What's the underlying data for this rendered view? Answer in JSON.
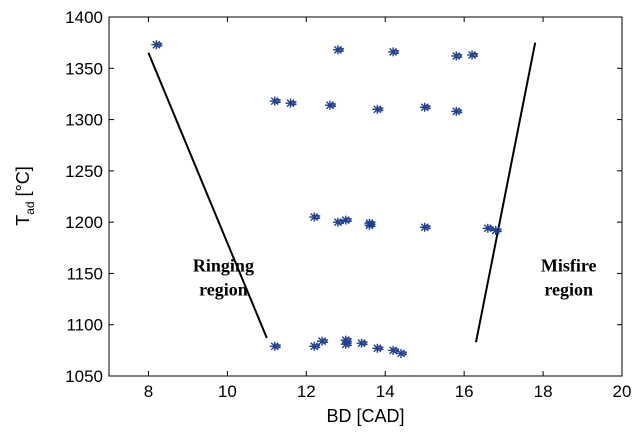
{
  "chart_data": {
    "type": "scatter",
    "title": "",
    "xlabel": "BD [CAD]",
    "ylabel_main": "T",
    "ylabel_sub": "ad",
    "ylabel_unit": " [°C]",
    "xlim": [
      7,
      20
    ],
    "ylim": [
      1050,
      1400
    ],
    "xticks": [
      8,
      10,
      12,
      14,
      16,
      18,
      20
    ],
    "yticks": [
      1050,
      1100,
      1150,
      1200,
      1250,
      1300,
      1350,
      1400
    ],
    "grid": false,
    "marker_color": "#1f3f8f",
    "line_color": "#000000",
    "points": [
      {
        "x": 8.2,
        "y": 1373
      },
      {
        "x": 12.8,
        "y": 1368
      },
      {
        "x": 14.2,
        "y": 1366
      },
      {
        "x": 15.8,
        "y": 1362
      },
      {
        "x": 16.2,
        "y": 1363
      },
      {
        "x": 11.2,
        "y": 1318
      },
      {
        "x": 11.6,
        "y": 1316
      },
      {
        "x": 12.6,
        "y": 1314
      },
      {
        "x": 13.8,
        "y": 1310
      },
      {
        "x": 15.0,
        "y": 1312
      },
      {
        "x": 15.8,
        "y": 1308
      },
      {
        "x": 12.2,
        "y": 1205
      },
      {
        "x": 12.8,
        "y": 1200
      },
      {
        "x": 13.0,
        "y": 1202
      },
      {
        "x": 13.6,
        "y": 1199
      },
      {
        "x": 13.6,
        "y": 1197
      },
      {
        "x": 15.0,
        "y": 1195
      },
      {
        "x": 16.6,
        "y": 1194
      },
      {
        "x": 16.8,
        "y": 1192
      },
      {
        "x": 11.2,
        "y": 1079
      },
      {
        "x": 12.2,
        "y": 1079
      },
      {
        "x": 12.4,
        "y": 1084
      },
      {
        "x": 13.0,
        "y": 1085
      },
      {
        "x": 13.0,
        "y": 1081
      },
      {
        "x": 13.4,
        "y": 1082
      },
      {
        "x": 13.8,
        "y": 1077
      },
      {
        "x": 14.2,
        "y": 1075
      },
      {
        "x": 14.4,
        "y": 1072
      }
    ],
    "boundary_lines": [
      {
        "name": "ringing-boundary",
        "x1": 8.0,
        "y1": 1365,
        "x2": 11.0,
        "y2": 1087
      },
      {
        "name": "misfire-boundary",
        "x1": 16.3,
        "y1": 1083,
        "x2": 17.8,
        "y2": 1375
      }
    ],
    "annotations": [
      {
        "name": "ringing-region-label",
        "lines": [
          "Ringing",
          "region"
        ],
        "x": 9.9,
        "y": 1152
      },
      {
        "name": "misfire-region-label",
        "lines": [
          "Misfire",
          "region"
        ],
        "x": 18.65,
        "y": 1152
      }
    ]
  }
}
